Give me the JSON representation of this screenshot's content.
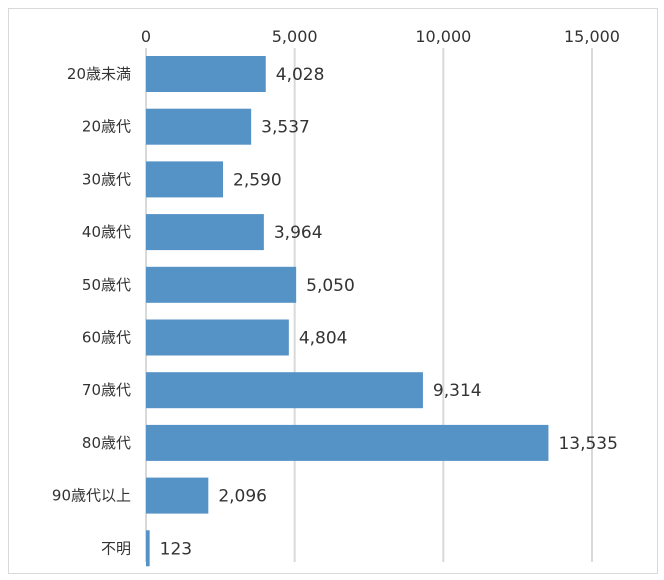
{
  "chart_data": {
    "type": "bar",
    "orientation": "horizontal",
    "title": "",
    "xlabel": "",
    "ylabel": "",
    "categories": [
      "20歳未満",
      "20歳代",
      "30歳代",
      "40歳代",
      "50歳代",
      "60歳代",
      "70歳代",
      "80歳代",
      "90歳代以上",
      "不明"
    ],
    "values": [
      4028,
      3537,
      2590,
      3964,
      5050,
      4804,
      9314,
      13535,
      2096,
      123
    ],
    "value_labels": [
      "4,028",
      "3,537",
      "2,590",
      "3,964",
      "5,050",
      "4,804",
      "9,314",
      "13,535",
      "2,096",
      "123"
    ],
    "xlim": [
      0,
      15000
    ],
    "x_ticks": [
      0,
      5000,
      10000,
      15000
    ],
    "x_tick_labels": [
      "0",
      "5,000",
      "10,000",
      "15,000"
    ],
    "x_axis_position": "top",
    "grid": true,
    "legend": "none",
    "bar_color": "#5592c6",
    "grid_color": "#d9d9d9"
  }
}
